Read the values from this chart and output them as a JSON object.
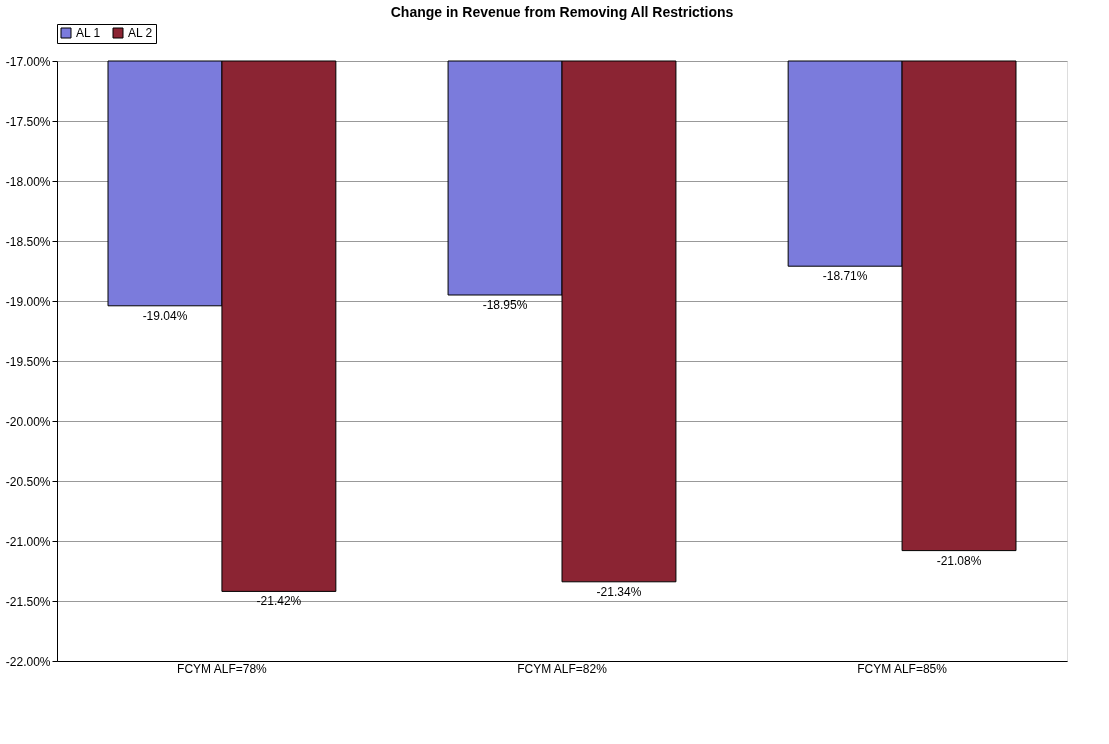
{
  "chart_data": {
    "type": "bar",
    "title": "Change in Revenue from Removing All Restrictions",
    "categories": [
      "FCYM ALF=78%",
      "FCYM ALF=82%",
      "FCYM ALF=85%"
    ],
    "series": [
      {
        "name": "AL 1",
        "color": "#7b7bdc",
        "values": [
          -19.04,
          -18.95,
          -18.71
        ],
        "value_labels": [
          "-19.04%",
          "-18.95%",
          "-18.71%"
        ]
      },
      {
        "name": "AL 2",
        "color": "#8b2433",
        "values": [
          -21.42,
          -21.34,
          -21.08
        ],
        "value_labels": [
          "-21.42%",
          "-21.34%",
          "-21.08%"
        ]
      }
    ],
    "ylim": [
      -22,
      -17
    ],
    "yticks": [
      {
        "value": -17,
        "label": "-17.00%"
      },
      {
        "value": -17.5,
        "label": "-17.50%"
      },
      {
        "value": -18,
        "label": "-18.00%"
      },
      {
        "value": -18.5,
        "label": "-18.50%"
      },
      {
        "value": -19,
        "label": "-19.00%"
      },
      {
        "value": -19.5,
        "label": "-19.50%"
      },
      {
        "value": -20,
        "label": "-20.00%"
      },
      {
        "value": -20.5,
        "label": "-20.50%"
      },
      {
        "value": -21,
        "label": "-21.00%"
      },
      {
        "value": -21.5,
        "label": "-21.50%"
      },
      {
        "value": -22,
        "label": "-22.00%"
      }
    ],
    "grid": "y",
    "legend": "top"
  }
}
